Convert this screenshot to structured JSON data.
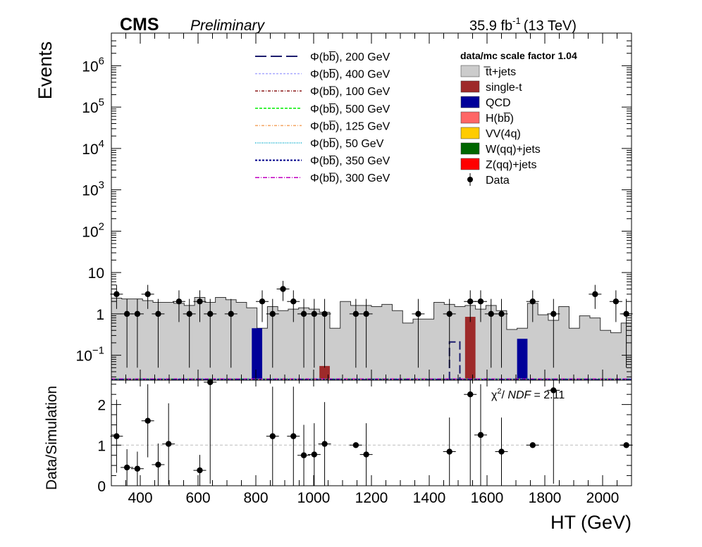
{
  "header": {
    "experiment": "CMS",
    "status": "Preliminary",
    "lumi": "35.9 fb",
    "lumi_exp": "-1",
    "energy": "(13 TeV)"
  },
  "scale_factor_label": "data/mc scale factor 1.04",
  "chi2_label": "= 2.11",
  "chart_data": [
    {
      "type": "bar",
      "panel": "main",
      "ylabel": "Events",
      "yscale": "log",
      "ylim": [
        0.025,
        4500000
      ],
      "xlim": [
        300,
        2100
      ],
      "yticks": [
        {
          "v": 0.1,
          "base": "10",
          "exp": "−1"
        },
        {
          "v": 1,
          "base": "1",
          "exp": ""
        },
        {
          "v": 10,
          "base": "10",
          "exp": ""
        },
        {
          "v": 100,
          "base": "10",
          "exp": "2"
        },
        {
          "v": 1000,
          "base": "10",
          "exp": "3"
        },
        {
          "v": 10000,
          "base": "10",
          "exp": "4"
        },
        {
          "v": 100000,
          "base": "10",
          "exp": "5"
        },
        {
          "v": 1000000,
          "base": "10",
          "exp": "6"
        }
      ],
      "bin_edges": [
        300,
        318,
        336,
        354,
        372,
        390,
        408,
        426,
        444,
        462,
        480,
        498,
        516,
        534,
        552,
        570,
        588,
        606,
        624,
        642,
        660,
        678,
        696,
        714,
        732,
        750,
        768,
        786,
        804,
        822,
        840,
        858,
        876,
        894,
        912,
        930,
        948,
        966,
        984,
        1002,
        1020,
        1038,
        1056,
        1074,
        1092,
        1110,
        1128,
        1146,
        1164,
        1182,
        1200,
        1218,
        1236,
        1254,
        1272,
        1290,
        1308,
        1326,
        1344,
        1362,
        1380,
        1398,
        1416,
        1434,
        1452,
        1470,
        1488,
        1506,
        1524,
        1542,
        1560,
        1578,
        1596,
        1614,
        1632,
        1650,
        1668,
        1686,
        1704,
        1722,
        1740,
        1758,
        1776,
        1794,
        1812,
        1830,
        1848,
        1866,
        1884,
        1902,
        1920,
        1938,
        1956,
        1974,
        1992,
        2010,
        2028,
        2046,
        2064,
        2082,
        2100
      ],
      "ttbar": [
        2.4,
        2.4,
        2.3,
        2.3,
        2.3,
        2.3,
        2.1,
        2.1,
        1.9,
        1.9,
        1.9,
        1.9,
        1.8,
        1.8,
        1.6,
        1.6,
        2.5,
        2.5,
        1.9,
        1.9,
        2.5,
        2.5,
        2.2,
        2.2,
        1.9,
        1.9,
        1.4,
        1.4,
        0.45,
        0.45,
        1.5,
        1.5,
        1.2,
        1.2,
        1.3,
        1.3,
        1.4,
        1.4,
        1.3,
        1.3,
        1.1,
        1.1,
        0.45,
        0.45,
        2.0,
        2.0,
        1.6,
        1.6,
        1.6,
        1.6,
        1.5,
        1.5,
        1.7,
        1.7,
        1.2,
        1.2,
        0.6,
        0.6,
        0.75,
        0.75,
        0.75,
        0.75,
        1.9,
        1.9,
        1.7,
        1.7,
        1.5,
        1.5,
        1.6,
        1.6,
        1.3,
        1.3,
        1.6,
        1.6,
        1.2,
        1.2,
        0.42,
        0.42,
        0.45,
        0.45,
        1.8,
        1.8,
        0.95,
        0.95,
        0.7,
        0.7,
        1.5,
        1.5,
        0.45,
        0.45,
        0.9,
        0.9,
        0.8,
        0.8,
        0.4,
        0.4,
        0.35,
        0.35,
        0.6,
        0.6
      ],
      "stack_overlays": [
        {
          "name": "QCD",
          "x0": 786,
          "x1": 822,
          "value": 0.45
        },
        {
          "name": "single-t",
          "x0": 1020,
          "x1": 1056,
          "value": 0.055
        },
        {
          "name": "single-t",
          "x0": 1524,
          "x1": 1560,
          "value": 0.85
        },
        {
          "name": "QCD",
          "x0": 1704,
          "x1": 1740,
          "value": 0.25
        }
      ],
      "signal_200": {
        "x0": 1470,
        "x1": 1506,
        "value": 0.21
      },
      "data": [
        {
          "x": 318,
          "y": 3
        },
        {
          "x": 354,
          "y": 1
        },
        {
          "x": 390,
          "y": 1
        },
        {
          "x": 426,
          "y": 3
        },
        {
          "x": 462,
          "y": 1
        },
        {
          "x": 534,
          "y": 2
        },
        {
          "x": 570,
          "y": 1
        },
        {
          "x": 606,
          "y": 2
        },
        {
          "x": 642,
          "y": 1
        },
        {
          "x": 714,
          "y": 1
        },
        {
          "x": 822,
          "y": 2
        },
        {
          "x": 858,
          "y": 1
        },
        {
          "x": 894,
          "y": 4
        },
        {
          "x": 930,
          "y": 2
        },
        {
          "x": 966,
          "y": 1
        },
        {
          "x": 1002,
          "y": 1
        },
        {
          "x": 1038,
          "y": 1
        },
        {
          "x": 1146,
          "y": 1
        },
        {
          "x": 1182,
          "y": 1
        },
        {
          "x": 1362,
          "y": 1
        },
        {
          "x": 1470,
          "y": 1
        },
        {
          "x": 1542,
          "y": 2
        },
        {
          "x": 1578,
          "y": 2
        },
        {
          "x": 1614,
          "y": 1
        },
        {
          "x": 1650,
          "y": 1
        },
        {
          "x": 1758,
          "y": 2
        },
        {
          "x": 1830,
          "y": 1
        },
        {
          "x": 1974,
          "y": 3
        },
        {
          "x": 2046,
          "y": 2
        },
        {
          "x": 2082,
          "y": 1
        }
      ],
      "legend_left": [
        {
          "label": "Φ(bb̅), 200 GeV",
          "color": "#1c1c6e",
          "dash": "16,6",
          "width": 2
        },
        {
          "label": "Φ(bb̅), 400 GeV",
          "color": "#a9a9ff",
          "dash": "3,2",
          "width": 1.5
        },
        {
          "label": "Φ(bb̅), 100 GeV",
          "color": "#8b1a1a",
          "dash": "4,2,1,2",
          "width": 1.5
        },
        {
          "label": "Φ(bb̅), 500 GeV",
          "color": "#00ee00",
          "dash": "4,2",
          "width": 1.5
        },
        {
          "label": "Φ(bb̅), 125 GeV",
          "color": "#f4a460",
          "dash": "4,2,1,2",
          "width": 1.5
        },
        {
          "label": "Φ(bb̅), 50 GeV",
          "color": "#00aacc",
          "dash": "1,1.5",
          "width": 1.5
        },
        {
          "label": "Φ(bb̅), 350 GeV",
          "color": "#00008b",
          "dash": "3,2",
          "width": 2
        },
        {
          "label": "Φ(bb̅), 300 GeV",
          "color": "#c000c0",
          "dash": "6,2,1,2",
          "width": 1.5
        }
      ],
      "legend_right": [
        {
          "label": "t̅t+jets",
          "color": "#cccccc",
          "kind": "fill"
        },
        {
          "label": "single-t",
          "color": "#9e2a2a",
          "kind": "fill"
        },
        {
          "label": "QCD",
          "color": "#000099",
          "kind": "fill"
        },
        {
          "label": "H(bb̅)",
          "color": "#ff6666",
          "kind": "fill"
        },
        {
          "label": "VV(4q)",
          "color": "#ffcc00",
          "kind": "fill"
        },
        {
          "label": "W(qq)+jets",
          "color": "#006600",
          "kind": "fill"
        },
        {
          "label": "Z(qq)+jets",
          "color": "#ff0000",
          "kind": "fill"
        },
        {
          "label": "Data",
          "color": "#000000",
          "kind": "marker"
        }
      ]
    },
    {
      "type": "scatter",
      "panel": "ratio",
      "xlabel": "HT (GeV)",
      "ylabel": "Data/Simulation",
      "xlim": [
        300,
        2100
      ],
      "ylim": [
        0,
        2.6
      ],
      "xticks": [
        400,
        600,
        800,
        1000,
        1200,
        1400,
        1600,
        1800,
        2000
      ],
      "yticks": [
        0,
        1,
        2
      ],
      "reference_line": 1,
      "points": [
        {
          "x": 318,
          "y": 1.22,
          "err": 0.9
        },
        {
          "x": 354,
          "y": 0.45,
          "err": 0.45
        },
        {
          "x": 390,
          "y": 0.42,
          "err": 0.42
        },
        {
          "x": 426,
          "y": 1.6,
          "err": 0.9
        },
        {
          "x": 462,
          "y": 0.52,
          "err": 0.52
        },
        {
          "x": 498,
          "y": 1.03,
          "err": 1.0
        },
        {
          "x": 606,
          "y": 0.38,
          "err": 0.38
        },
        {
          "x": 642,
          "y": 2.55,
          "err": 2.5
        },
        {
          "x": 858,
          "y": 1.22,
          "err": 1.22
        },
        {
          "x": 930,
          "y": 1.22,
          "err": 1.22
        },
        {
          "x": 966,
          "y": 0.75,
          "err": 0.75
        },
        {
          "x": 1002,
          "y": 0.77,
          "err": 0.77
        },
        {
          "x": 1038,
          "y": 1.03,
          "err": 1.03
        },
        {
          "x": 1146,
          "y": 1.0,
          "err": 0.05
        },
        {
          "x": 1182,
          "y": 0.77,
          "err": 0.77
        },
        {
          "x": 1470,
          "y": 0.84,
          "err": 0.84
        },
        {
          "x": 1542,
          "y": 2.25,
          "err": 2.25
        },
        {
          "x": 1578,
          "y": 1.25,
          "err": 1.25
        },
        {
          "x": 1650,
          "y": 0.84,
          "err": 0.84
        },
        {
          "x": 1758,
          "y": 1.0,
          "err": 0.03
        },
        {
          "x": 1830,
          "y": 2.35,
          "err": 2.3
        },
        {
          "x": 2082,
          "y": 1.0,
          "err": 0.03
        }
      ]
    }
  ]
}
